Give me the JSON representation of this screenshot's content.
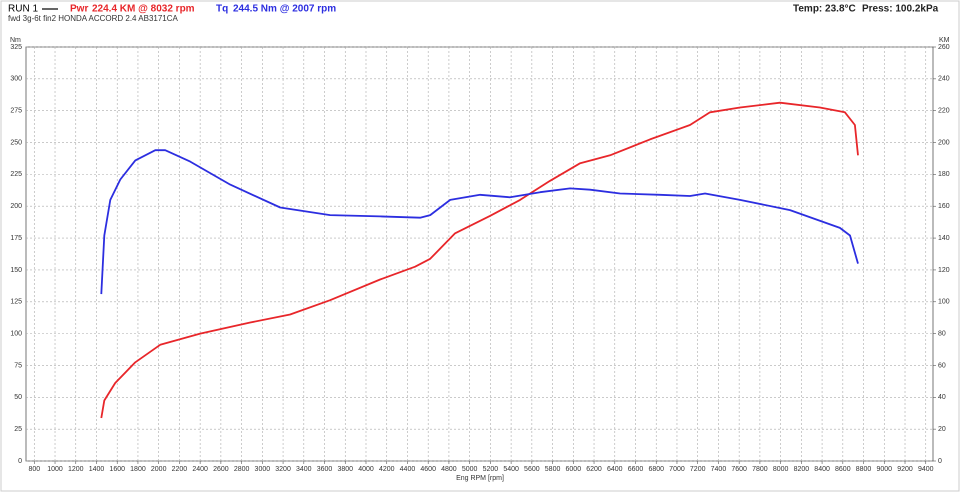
{
  "chart_data": {
    "type": "line",
    "run": "RUN 1",
    "subtitle": "fwd 3g-6t fin2 HONDA ACCORD 2.4 AB3171CA",
    "temp": "Temp: 23.8°C",
    "press": "Press: 100.2kPa",
    "x_label": "Eng RPM [rpm]",
    "y_label": "Nm",
    "y2_label": "KM",
    "xlim": [
      720,
      9470
    ],
    "ylim": [
      0,
      325
    ],
    "y2lim": [
      0,
      260
    ],
    "xticks": [
      800,
      1000,
      1200,
      1400,
      1600,
      1800,
      2000,
      2200,
      2400,
      2600,
      2800,
      3000,
      3200,
      3400,
      3600,
      3800,
      4000,
      4200,
      4400,
      4600,
      4800,
      5000,
      5200,
      5400,
      5600,
      5800,
      6000,
      6200,
      6400,
      6600,
      6800,
      7000,
      7200,
      7400,
      7600,
      7800,
      8000,
      8200,
      8400,
      8600,
      8800,
      9000,
      9200,
      9400
    ],
    "yticks": [
      0,
      25,
      50,
      75,
      100,
      125,
      150,
      175,
      200,
      225,
      250,
      275,
      300,
      325
    ],
    "y2ticks": [
      0,
      20,
      40,
      60,
      80,
      100,
      120,
      140,
      160,
      180,
      200,
      220,
      240,
      260
    ],
    "grid": true,
    "series": [
      {
        "name": "Pwr",
        "peak": "224.4 KM @ 8032 rpm",
        "color": "#e8262a",
        "axis": "y2",
        "x": [
          1446,
          1475,
          1581,
          1774,
          2015,
          2401,
          2883,
          3268,
          3654,
          4136,
          4474,
          4619,
          4860,
          5198,
          5487,
          5776,
          6066,
          6355,
          6740,
          7126,
          7319,
          7608,
          7994,
          8379,
          8620,
          8717,
          8746
        ],
        "values": [
          27,
          38,
          49,
          62,
          73,
          80,
          87,
          92,
          101,
          114,
          122,
          127,
          143,
          154,
          164,
          176,
          187,
          192,
          202,
          211,
          219,
          222,
          225,
          222,
          219,
          211,
          192
        ]
      },
      {
        "name": "Tq",
        "peak": "244.5 Nm @ 2007 rpm",
        "color": "#2c2ee0",
        "axis": "y",
        "x": [
          1446,
          1475,
          1533,
          1630,
          1774,
          1967,
          2063,
          2304,
          2690,
          3172,
          3654,
          4136,
          4522,
          4619,
          4812,
          5101,
          5390,
          5680,
          5969,
          6162,
          6451,
          6837,
          7126,
          7271,
          7608,
          8090,
          8572,
          8669,
          8746
        ],
        "values": [
          131,
          177,
          205,
          221,
          236,
          244,
          244,
          235,
          217,
          199,
          193,
          192,
          191,
          193,
          205,
          209,
          207,
          211,
          214,
          213,
          210,
          209,
          208,
          210,
          205,
          197,
          183,
          177,
          155
        ]
      }
    ]
  }
}
